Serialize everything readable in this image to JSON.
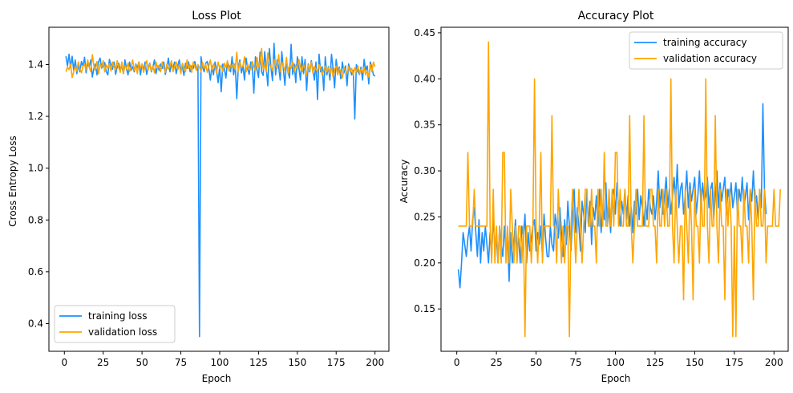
{
  "chart_data": [
    {
      "type": "line",
      "title": "Loss Plot",
      "xlabel": "Epoch",
      "ylabel": "Cross Entropy Loss",
      "xlim": [
        -9.95,
        208.95
      ],
      "ylim": [
        0.293,
        1.544
      ],
      "x_ticks": [
        0,
        25,
        50,
        75,
        100,
        125,
        150,
        175,
        200
      ],
      "y_ticks": [
        0.4,
        0.6,
        0.8,
        1.0,
        1.2,
        1.4
      ],
      "y_tick_decimals": 1,
      "grid": false,
      "legend_position": "lower-left",
      "x_start": 1,
      "series": [
        {
          "name": "training loss",
          "color": "#1e90ff",
          "values": [
            1.432,
            1.395,
            1.44,
            1.388,
            1.432,
            1.378,
            1.418,
            1.365,
            1.4,
            1.372,
            1.412,
            1.392,
            1.428,
            1.368,
            1.405,
            1.39,
            1.418,
            1.352,
            1.385,
            1.402,
            1.36,
            1.41,
            1.425,
            1.386,
            1.395,
            1.408,
            1.372,
            1.36,
            1.42,
            1.398,
            1.382,
            1.41,
            1.362,
            1.39,
            1.405,
            1.378,
            1.395,
            1.365,
            1.418,
            1.385,
            1.36,
            1.41,
            1.378,
            1.392,
            1.372,
            1.402,
            1.388,
            1.41,
            1.36,
            1.402,
            1.378,
            1.41,
            1.362,
            1.388,
            1.405,
            1.372,
            1.39,
            1.418,
            1.365,
            1.395,
            1.378,
            1.402,
            1.385,
            1.41,
            1.362,
            1.39,
            1.425,
            1.372,
            1.402,
            1.388,
            1.41,
            1.365,
            1.395,
            1.418,
            1.378,
            1.392,
            1.358,
            1.405,
            1.385,
            1.41,
            1.372,
            1.395,
            1.385,
            1.412,
            1.378,
            1.395,
            0.35,
            1.43,
            1.39,
            1.372,
            1.405,
            1.412,
            1.385,
            1.34,
            1.395,
            1.36,
            1.41,
            1.378,
            1.33,
            1.392,
            1.295,
            1.402,
            1.385,
            1.348,
            1.41,
            1.395,
            1.372,
            1.43,
            1.36,
            1.402,
            1.268,
            1.39,
            1.418,
            1.368,
            1.395,
            1.34,
            1.425,
            1.385,
            1.362,
            1.41,
            1.392,
            1.29,
            1.43,
            1.382,
            1.35,
            1.448,
            1.372,
            1.358,
            1.45,
            1.385,
            1.318,
            1.462,
            1.39,
            1.338,
            1.482,
            1.36,
            1.418,
            1.39,
            1.34,
            1.45,
            1.382,
            1.32,
            1.415,
            1.372,
            1.348,
            1.478,
            1.362,
            1.402,
            1.33,
            1.43,
            1.388,
            1.34,
            1.43,
            1.365,
            1.42,
            1.3,
            1.402,
            1.372,
            1.415,
            1.382,
            1.34,
            1.41,
            1.265,
            1.44,
            1.372,
            1.392,
            1.3,
            1.43,
            1.36,
            1.392,
            1.34,
            1.44,
            1.385,
            1.31,
            1.42,
            1.372,
            1.39,
            1.345,
            1.41,
            1.368,
            1.395,
            1.318,
            1.402,
            1.382,
            1.36,
            1.378,
            1.19,
            1.4,
            1.372,
            1.362,
            1.39,
            1.34,
            1.42,
            1.378,
            1.395,
            1.325,
            1.41,
            1.388,
            1.36,
            1.355
          ]
        },
        {
          "name": "validation loss",
          "color": "#ffa500",
          "values": [
            1.372,
            1.39,
            1.38,
            1.402,
            1.35,
            1.372,
            1.392,
            1.375,
            1.41,
            1.385,
            1.368,
            1.395,
            1.4,
            1.38,
            1.418,
            1.39,
            1.372,
            1.438,
            1.395,
            1.378,
            1.412,
            1.365,
            1.4,
            1.39,
            1.415,
            1.372,
            1.398,
            1.385,
            1.402,
            1.375,
            1.41,
            1.392,
            1.378,
            1.415,
            1.388,
            1.37,
            1.41,
            1.365,
            1.395,
            1.385,
            1.405,
            1.372,
            1.39,
            1.418,
            1.378,
            1.398,
            1.365,
            1.41,
            1.388,
            1.4,
            1.37,
            1.392,
            1.415,
            1.38,
            1.402,
            1.375,
            1.395,
            1.368,
            1.41,
            1.385,
            1.398,
            1.372,
            1.41,
            1.388,
            1.37,
            1.402,
            1.382,
            1.395,
            1.415,
            1.372,
            1.395,
            1.41,
            1.38,
            1.398,
            1.365,
            1.405,
            1.388,
            1.372,
            1.418,
            1.385,
            1.398,
            1.37,
            1.41,
            1.392,
            1.378,
            1.4,
            1.39,
            1.372,
            1.408,
            1.385,
            1.4,
            1.37,
            1.395,
            1.418,
            1.378,
            1.402,
            1.39,
            1.368,
            1.41,
            1.385,
            1.398,
            1.372,
            1.405,
            1.388,
            1.415,
            1.375,
            1.398,
            1.392,
            1.405,
            1.38,
            1.448,
            1.372,
            1.41,
            1.388,
            1.395,
            1.43,
            1.372,
            1.402,
            1.385,
            1.38,
            1.412,
            1.392,
            1.375,
            1.428,
            1.388,
            1.41,
            1.462,
            1.382,
            1.398,
            1.372,
            1.445,
            1.405,
            1.39,
            1.378,
            1.42,
            1.398,
            1.385,
            1.438,
            1.372,
            1.41,
            1.392,
            1.378,
            1.428,
            1.365,
            1.4,
            1.385,
            1.412,
            1.372,
            1.398,
            1.382,
            1.42,
            1.39,
            1.372,
            1.402,
            1.385,
            1.36,
            1.398,
            1.378,
            1.41,
            1.368,
            1.392,
            1.382,
            1.372,
            1.4,
            1.388,
            1.36,
            1.378,
            1.395,
            1.372,
            1.388,
            1.365,
            1.39,
            1.352,
            1.382,
            1.395,
            1.36,
            1.385,
            1.372,
            1.348,
            1.39,
            1.378,
            1.365,
            1.392,
            1.372,
            1.385,
            1.36,
            1.388,
            1.372,
            1.395,
            1.365,
            1.382,
            1.37,
            1.39,
            1.36,
            1.378,
            1.352,
            1.4,
            1.372,
            1.41,
            1.392
          ]
        }
      ]
    },
    {
      "type": "line",
      "title": "Accuracy Plot",
      "xlabel": "Epoch",
      "ylabel": "Accuracy",
      "xlim": [
        -9.95,
        208.95
      ],
      "ylim": [
        0.104,
        0.456
      ],
      "x_ticks": [
        0,
        25,
        50,
        75,
        100,
        125,
        150,
        175,
        200
      ],
      "y_ticks": [
        0.15,
        0.2,
        0.25,
        0.3,
        0.35,
        0.4,
        0.45
      ],
      "y_tick_decimals": 2,
      "grid": false,
      "legend_position": "upper-right",
      "x_start": 1,
      "series": [
        {
          "name": "training accuracy",
          "color": "#1e90ff",
          "values": [
            0.193,
            0.173,
            0.2,
            0.233,
            0.22,
            0.207,
            0.227,
            0.24,
            0.213,
            0.247,
            0.26,
            0.233,
            0.207,
            0.247,
            0.2,
            0.233,
            0.213,
            0.24,
            0.22,
            0.2,
            0.233,
            0.207,
            0.253,
            0.213,
            0.227,
            0.2,
            0.24,
            0.22,
            0.207,
            0.24,
            0.213,
            0.227,
            0.18,
            0.233,
            0.2,
            0.22,
            0.247,
            0.213,
            0.227,
            0.2,
            0.24,
            0.227,
            0.253,
            0.2,
            0.233,
            0.213,
            0.227,
            0.24,
            0.247,
            0.213,
            0.233,
            0.22,
            0.24,
            0.207,
            0.253,
            0.227,
            0.207,
            0.207,
            0.24,
            0.22,
            0.213,
            0.253,
            0.24,
            0.227,
            0.26,
            0.233,
            0.207,
            0.247,
            0.22,
            0.267,
            0.24,
            0.213,
            0.253,
            0.28,
            0.233,
            0.26,
            0.24,
            0.213,
            0.267,
            0.253,
            0.233,
            0.28,
            0.24,
            0.267,
            0.22,
            0.26,
            0.247,
            0.273,
            0.24,
            0.28,
            0.233,
            0.26,
            0.247,
            0.287,
            0.24,
            0.26,
            0.233,
            0.273,
            0.28,
            0.253,
            0.287,
            0.26,
            0.24,
            0.267,
            0.253,
            0.28,
            0.247,
            0.273,
            0.24,
            0.26,
            0.233,
            0.267,
            0.253,
            0.28,
            0.247,
            0.273,
            0.26,
            0.24,
            0.267,
            0.247,
            0.28,
            0.26,
            0.253,
            0.273,
            0.247,
            0.267,
            0.3,
            0.26,
            0.28,
            0.253,
            0.273,
            0.293,
            0.26,
            0.28,
            0.253,
            0.273,
            0.293,
            0.267,
            0.307,
            0.26,
            0.28,
            0.287,
            0.253,
            0.273,
            0.3,
            0.26,
            0.287,
            0.267,
            0.28,
            0.293,
            0.253,
            0.273,
            0.3,
            0.26,
            0.287,
            0.267,
            0.273,
            0.293,
            0.26,
            0.28,
            0.287,
            0.247,
            0.273,
            0.3,
            0.26,
            0.287,
            0.267,
            0.28,
            0.293,
            0.253,
            0.28,
            0.267,
            0.287,
            0.26,
            0.273,
            0.287,
            0.253,
            0.28,
            0.267,
            0.293,
            0.26,
            0.273,
            0.287,
            0.247,
            0.28,
            0.267,
            0.3,
            0.26,
            0.273,
            0.247,
            0.28,
            0.26,
            0.373,
            0.28,
            0.253
          ]
        },
        {
          "name": "validation accuracy",
          "color": "#ffa500",
          "values": [
            0.24,
            0.24,
            0.24,
            0.24,
            0.24,
            0.24,
            0.32,
            0.24,
            0.24,
            0.24,
            0.28,
            0.24,
            0.24,
            0.24,
            0.24,
            0.24,
            0.24,
            0.24,
            0.24,
            0.44,
            0.24,
            0.2,
            0.28,
            0.2,
            0.24,
            0.2,
            0.24,
            0.2,
            0.32,
            0.32,
            0.2,
            0.24,
            0.2,
            0.28,
            0.24,
            0.2,
            0.24,
            0.2,
            0.24,
            0.24,
            0.2,
            0.24,
            0.12,
            0.24,
            0.24,
            0.24,
            0.2,
            0.24,
            0.4,
            0.24,
            0.2,
            0.24,
            0.32,
            0.2,
            0.24,
            0.24,
            0.24,
            0.24,
            0.24,
            0.36,
            0.24,
            0.24,
            0.2,
            0.28,
            0.24,
            0.2,
            0.24,
            0.2,
            0.24,
            0.24,
            0.12,
            0.24,
            0.28,
            0.24,
            0.2,
            0.24,
            0.28,
            0.24,
            0.2,
            0.24,
            0.28,
            0.28,
            0.24,
            0.24,
            0.28,
            0.24,
            0.24,
            0.2,
            0.28,
            0.24,
            0.28,
            0.24,
            0.32,
            0.24,
            0.24,
            0.28,
            0.24,
            0.28,
            0.24,
            0.32,
            0.32,
            0.24,
            0.28,
            0.24,
            0.24,
            0.28,
            0.24,
            0.24,
            0.36,
            0.24,
            0.2,
            0.24,
            0.28,
            0.24,
            0.24,
            0.24,
            0.24,
            0.36,
            0.24,
            0.24,
            0.24,
            0.28,
            0.28,
            0.24,
            0.24,
            0.2,
            0.28,
            0.24,
            0.24,
            0.28,
            0.24,
            0.28,
            0.24,
            0.24,
            0.4,
            0.24,
            0.2,
            0.28,
            0.24,
            0.2,
            0.24,
            0.24,
            0.16,
            0.28,
            0.24,
            0.2,
            0.28,
            0.24,
            0.16,
            0.28,
            0.24,
            0.24,
            0.2,
            0.28,
            0.24,
            0.24,
            0.4,
            0.24,
            0.2,
            0.28,
            0.24,
            0.24,
            0.36,
            0.24,
            0.2,
            0.28,
            0.24,
            0.24,
            0.16,
            0.28,
            0.24,
            0.28,
            0.24,
            0.12,
            0.24,
            0.12,
            0.28,
            0.24,
            0.24,
            0.2,
            0.28,
            0.24,
            0.24,
            0.2,
            0.28,
            0.24,
            0.16,
            0.28,
            0.24,
            0.24,
            0.28,
            0.24,
            0.24,
            0.28,
            0.2,
            0.24,
            0.24,
            0.24,
            0.24,
            0.28,
            0.24,
            0.24,
            0.24,
            0.28
          ]
        }
      ]
    }
  ]
}
